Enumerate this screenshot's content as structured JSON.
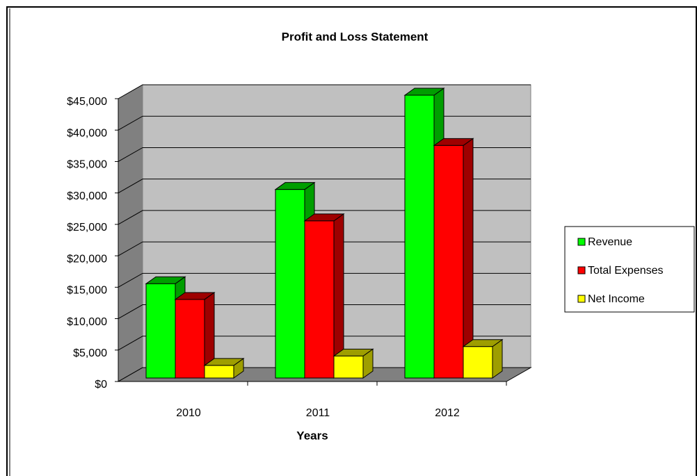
{
  "chart_data": {
    "type": "bar3d",
    "title": "Profit and Loss Statement",
    "x_label": "Years",
    "categories": [
      "2010",
      "2011",
      "2012"
    ],
    "series": [
      {
        "name": "Revenue",
        "color": "#00ff00",
        "values": [
          15000,
          30000,
          45000
        ]
      },
      {
        "name": "Total Expenses",
        "color": "#ff0000",
        "values": [
          12500,
          25000,
          37000
        ]
      },
      {
        "name": "Net Income",
        "color": "#ffff00",
        "values": [
          2000,
          3500,
          5000
        ]
      }
    ],
    "ylim": [
      0,
      45000
    ],
    "yticks": [
      {
        "value": 0,
        "label": "$0"
      },
      {
        "value": 5000,
        "label": "$5,000"
      },
      {
        "value": 10000,
        "label": "$10,000"
      },
      {
        "value": 15000,
        "label": "$15,000"
      },
      {
        "value": 20000,
        "label": "$20,000"
      },
      {
        "value": 25000,
        "label": "$25,000"
      },
      {
        "value": 30000,
        "label": "$30,000"
      },
      {
        "value": 35000,
        "label": "$35,000"
      },
      {
        "value": 40000,
        "label": "$40,000"
      },
      {
        "value": 45000,
        "label": "$45,000"
      }
    ],
    "grid": true,
    "legend": "right"
  }
}
